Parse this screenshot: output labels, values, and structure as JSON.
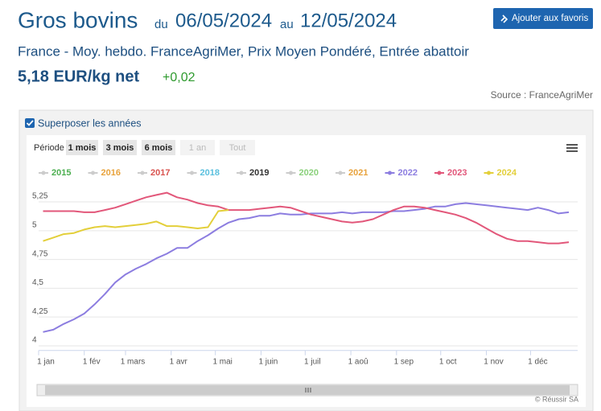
{
  "header": {
    "title": "Gros bovins",
    "from_word": "du",
    "from_date": "06/05/2024",
    "to_word": "au",
    "to_date": "12/05/2024",
    "favorite_button": "Ajouter aux favoris",
    "subtitle": "France - Moy. hebdo. FranceAgriMer, Prix Moyen Pondéré, Entrée abattoir",
    "price": "5,18 EUR/kg net",
    "change": "+0,02",
    "source": "Source : FranceAgriMer"
  },
  "controls": {
    "overlay_label": "Superposer les années",
    "period_label": "Période",
    "periods": [
      "1 mois",
      "3 mois",
      "6 mois",
      "1 an",
      "Tout"
    ],
    "credit": "© Réussir SA"
  },
  "chart_data": {
    "type": "line",
    "x": [
      3,
      10,
      17,
      24,
      31,
      38,
      45,
      52,
      59,
      66,
      73,
      80,
      87,
      94,
      101,
      108,
      115,
      122,
      129,
      136,
      143,
      150,
      157,
      164,
      171,
      178,
      185,
      192,
      199,
      206,
      213,
      220,
      227,
      234,
      241,
      248,
      255,
      262,
      269,
      276,
      283,
      290,
      297,
      304,
      311,
      318,
      325,
      332,
      339,
      346,
      353,
      360
    ],
    "xlim": [
      0,
      366
    ],
    "xticks": [
      {
        "value": 0,
        "label": "1 jan"
      },
      {
        "value": 31,
        "label": "1 fév"
      },
      {
        "value": 59,
        "label": "1 mars"
      },
      {
        "value": 90,
        "label": "1 avr"
      },
      {
        "value": 120,
        "label": "1 mai"
      },
      {
        "value": 151,
        "label": "1 juin"
      },
      {
        "value": 181,
        "label": "1 juil"
      },
      {
        "value": 212,
        "label": "1 aoû"
      },
      {
        "value": 243,
        "label": "1 sep"
      },
      {
        "value": 273,
        "label": "1 oct"
      },
      {
        "value": 304,
        "label": "1 nov"
      },
      {
        "value": 334,
        "label": "1 déc"
      }
    ],
    "ylim": [
      3.96,
      5.42
    ],
    "yticks": [
      4,
      {
        "value": 4.25,
        "label": "4,25"
      },
      {
        "value": 4.5,
        "label": "4,5"
      },
      {
        "value": 4.75,
        "label": "4,75"
      },
      5,
      {
        "value": 5.25,
        "label": "5,25"
      }
    ],
    "grid": true,
    "hidden_series": [
      {
        "name": "2015",
        "color": "#4caf50"
      },
      {
        "name": "2016",
        "color": "#e8a33d"
      },
      {
        "name": "2017",
        "color": "#d9534f"
      },
      {
        "name": "2018",
        "color": "#5bc0de"
      },
      {
        "name": "2019",
        "color": "#333333"
      },
      {
        "name": "2020",
        "color": "#8bd17c"
      },
      {
        "name": "2021",
        "color": "#e8a33d"
      }
    ],
    "series": [
      {
        "name": "2022",
        "color": "#8c7de0",
        "values": [
          4.12,
          4.14,
          4.19,
          4.23,
          4.28,
          4.36,
          4.45,
          4.55,
          4.62,
          4.67,
          4.71,
          4.76,
          4.8,
          4.85,
          4.85,
          4.91,
          4.96,
          5.02,
          5.07,
          5.1,
          5.11,
          5.13,
          5.13,
          5.15,
          5.14,
          5.14,
          5.15,
          5.15,
          5.15,
          5.16,
          5.15,
          5.16,
          5.16,
          5.16,
          5.17,
          5.17,
          5.18,
          5.19,
          5.21,
          5.21,
          5.23,
          5.24,
          5.23,
          5.22,
          5.21,
          5.2,
          5.19,
          5.18,
          5.2,
          5.18,
          5.15,
          5.16
        ]
      },
      {
        "name": "2023",
        "color": "#e2577a",
        "values": [
          5.17,
          5.17,
          5.17,
          5.17,
          5.16,
          5.16,
          5.18,
          5.2,
          5.23,
          5.26,
          5.29,
          5.31,
          5.33,
          5.29,
          5.27,
          5.24,
          5.22,
          5.21,
          5.18,
          5.18,
          5.18,
          5.19,
          5.2,
          5.21,
          5.2,
          5.17,
          5.14,
          5.12,
          5.1,
          5.08,
          5.07,
          5.08,
          5.1,
          5.14,
          5.18,
          5.21,
          5.21,
          5.2,
          5.18,
          5.16,
          5.14,
          5.11,
          5.07,
          5.02,
          4.97,
          4.93,
          4.91,
          4.91,
          4.9,
          4.89,
          4.89,
          4.9
        ]
      },
      {
        "name": "2024",
        "color": "#e3cf3a",
        "values": [
          4.91,
          4.94,
          4.97,
          4.98,
          5.01,
          5.03,
          5.04,
          5.03,
          5.04,
          5.05,
          5.06,
          5.08,
          5.04,
          5.04,
          5.03,
          5.02,
          5.03,
          5.17,
          5.18,
          null,
          null,
          null,
          null,
          null,
          null,
          null,
          null,
          null,
          null,
          null,
          null,
          null,
          null,
          null,
          null,
          null,
          null,
          null,
          null,
          null,
          null,
          null,
          null,
          null,
          null,
          null,
          null,
          null,
          null,
          null,
          null,
          null
        ]
      }
    ]
  }
}
